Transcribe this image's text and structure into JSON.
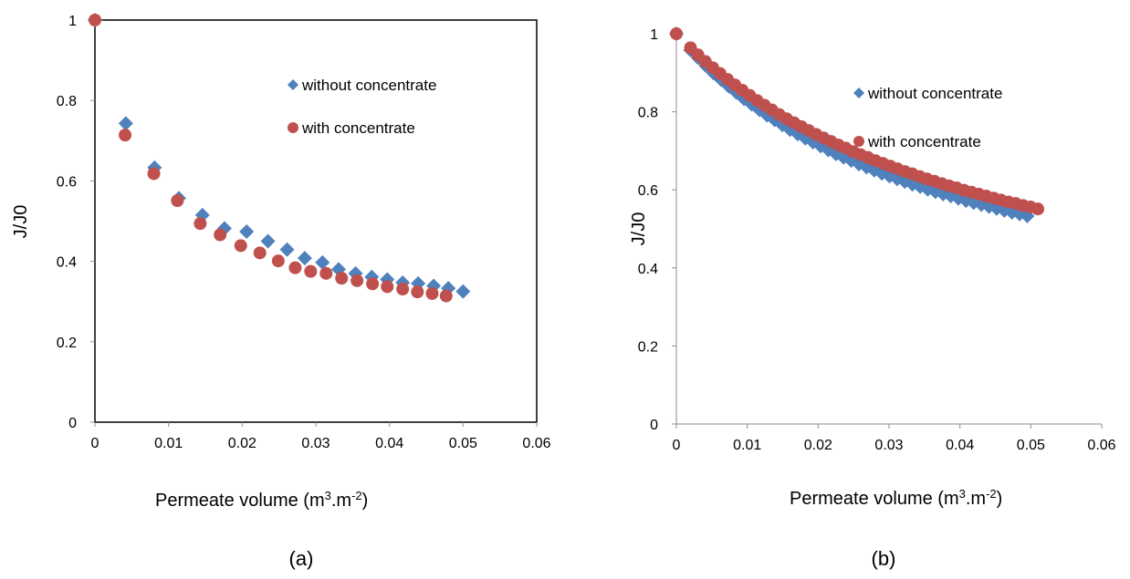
{
  "chart_data": [
    {
      "type": "scatter",
      "panel_label": "(a)",
      "xlabel": "Permeate volume (m",
      "xlabel_sup1": "3",
      "xlabel_mid": ".m",
      "xlabel_sup2": "-2",
      "xlabel_end": ")",
      "ylabel": "J/J0",
      "xlim": [
        0,
        0.06
      ],
      "ylim": [
        0,
        1
      ],
      "x_ticks": [
        "0",
        "0.01",
        "0.02",
        "0.03",
        "0.04",
        "0.05",
        "0.06"
      ],
      "y_ticks": [
        "0",
        "0.2",
        "0.4",
        "0.6",
        "0.8",
        "1"
      ],
      "grid": false,
      "legend_position": "top-right",
      "series": [
        {
          "name": "without concentrate",
          "marker": "diamond",
          "color": "#4F81BD",
          "points": [
            [
              0,
              1.0
            ],
            [
              0.0042,
              0.743
            ],
            [
              0.0081,
              0.633
            ],
            [
              0.0114,
              0.557
            ],
            [
              0.0146,
              0.515
            ],
            [
              0.0176,
              0.482
            ],
            [
              0.0206,
              0.474
            ],
            [
              0.0235,
              0.45
            ],
            [
              0.0261,
              0.429
            ],
            [
              0.0285,
              0.408
            ],
            [
              0.0309,
              0.397
            ],
            [
              0.0331,
              0.38
            ],
            [
              0.0354,
              0.37
            ],
            [
              0.0376,
              0.361
            ],
            [
              0.0397,
              0.355
            ],
            [
              0.0418,
              0.347
            ],
            [
              0.0439,
              0.345
            ],
            [
              0.046,
              0.339
            ],
            [
              0.048,
              0.333
            ],
            [
              0.05,
              0.325
            ]
          ]
        },
        {
          "name": "with concentrate",
          "marker": "circle",
          "color": "#C0504D",
          "points": [
            [
              0,
              1.0
            ],
            [
              0.0041,
              0.714
            ],
            [
              0.008,
              0.618
            ],
            [
              0.0112,
              0.551
            ],
            [
              0.0143,
              0.494
            ],
            [
              0.017,
              0.466
            ],
            [
              0.0198,
              0.439
            ],
            [
              0.0224,
              0.421
            ],
            [
              0.0249,
              0.401
            ],
            [
              0.0272,
              0.384
            ],
            [
              0.0293,
              0.375
            ],
            [
              0.0314,
              0.37
            ],
            [
              0.0335,
              0.358
            ],
            [
              0.0356,
              0.352
            ],
            [
              0.0377,
              0.344
            ],
            [
              0.0397,
              0.337
            ],
            [
              0.0418,
              0.331
            ],
            [
              0.0438,
              0.324
            ],
            [
              0.0458,
              0.32
            ],
            [
              0.0477,
              0.314
            ]
          ]
        }
      ]
    },
    {
      "type": "scatter",
      "panel_label": "(b)",
      "xlabel": "Permeate volume (m",
      "xlabel_sup1": "3",
      "xlabel_mid": ".m",
      "xlabel_sup2": "-2",
      "xlabel_end": ")",
      "ylabel": "J/J0",
      "xlim": [
        0,
        0.06
      ],
      "ylim": [
        0,
        1
      ],
      "x_ticks": [
        "0",
        "0.01",
        "0.02",
        "0.03",
        "0.04",
        "0.05",
        "0.06"
      ],
      "y_ticks": [
        "0",
        "0.2",
        "0.4",
        "0.6",
        "0.8",
        "1"
      ],
      "grid": false,
      "legend_position": "top-right",
      "series": [
        {
          "name": "without concentrate",
          "marker": "diamond",
          "color": "#4F81BD",
          "curve": {
            "x_start": 0.002,
            "x_end": 0.0495,
            "n": 45,
            "a": 0.18,
            "b": 0.0375,
            "c": 0.0035
          },
          "points": [
            [
              0,
              1.0
            ]
          ]
        },
        {
          "name": "with concentrate",
          "marker": "circle",
          "color": "#C0504D",
          "curve": {
            "x_start": 0.002,
            "x_end": 0.051,
            "n": 48,
            "a": 0.16,
            "b": 0.0445,
            "c": 0.0027
          },
          "points": [
            [
              0,
              1.0
            ]
          ]
        }
      ]
    }
  ]
}
